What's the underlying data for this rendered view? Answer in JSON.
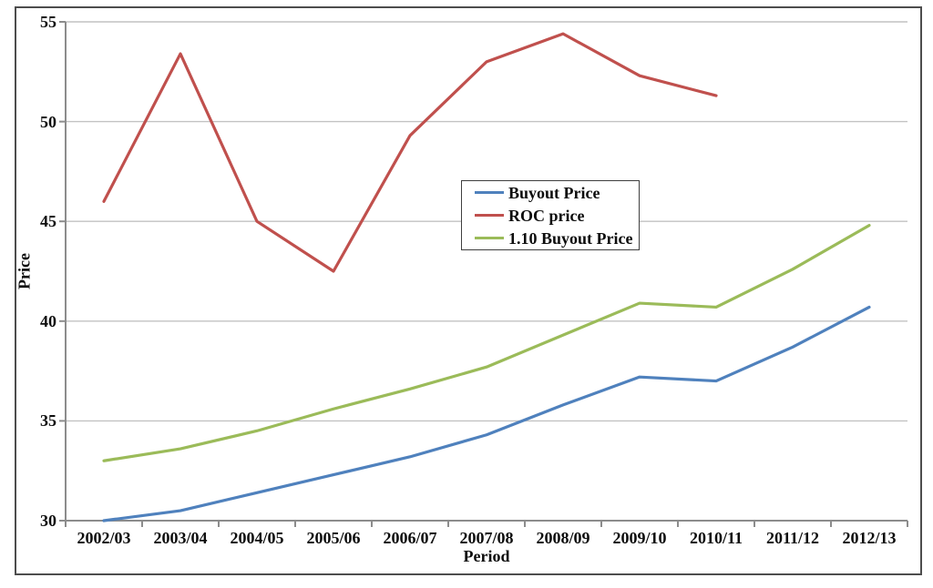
{
  "chart_data": {
    "type": "line",
    "title": "",
    "xlabel": "Period",
    "ylabel": "Price",
    "categories": [
      "2002/03",
      "2003/04",
      "2004/05",
      "2005/06",
      "2006/07",
      "2007/08",
      "2008/09",
      "2009/10",
      "2010/11",
      "2011/12",
      "2012/13"
    ],
    "series": [
      {
        "name": "Buyout Price",
        "color": "#4F81BD",
        "values": [
          30.0,
          30.5,
          31.4,
          32.3,
          33.2,
          34.3,
          35.8,
          37.2,
          37.0,
          38.7,
          40.7
        ]
      },
      {
        "name": "ROC price",
        "color": "#C0504D",
        "values": [
          46.0,
          53.4,
          45.0,
          42.5,
          49.3,
          53.0,
          54.4,
          52.3,
          51.3,
          null,
          null
        ]
      },
      {
        "name": "1.10 Buyout Price",
        "color": "#9BBB59",
        "values": [
          33.0,
          33.6,
          34.5,
          35.6,
          36.6,
          37.7,
          39.3,
          40.9,
          40.7,
          42.6,
          44.8
        ]
      }
    ],
    "ylim": [
      30,
      55
    ],
    "yticks": [
      30,
      35,
      40,
      45,
      50,
      55
    ],
    "grid": "horizontal",
    "legend_position": "inside-center",
    "colors": {
      "gridline": "#C2C2C2",
      "axis": "#8C8C8C",
      "text": "#0d0d0d"
    }
  }
}
